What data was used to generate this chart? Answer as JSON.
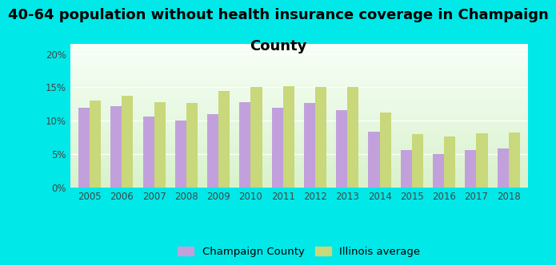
{
  "title_line1": "40-64 population without health insurance coverage in Champaign",
  "title_line2": "County",
  "years": [
    2005,
    2006,
    2007,
    2008,
    2009,
    2010,
    2011,
    2012,
    2013,
    2014,
    2015,
    2016,
    2017,
    2018
  ],
  "champaign": [
    12.0,
    12.2,
    10.6,
    10.0,
    11.0,
    12.8,
    12.0,
    12.7,
    11.6,
    8.4,
    5.6,
    5.0,
    5.6,
    5.9
  ],
  "illinois": [
    13.0,
    13.7,
    12.8,
    12.7,
    14.4,
    15.1,
    15.2,
    15.1,
    15.1,
    11.2,
    8.0,
    7.7,
    8.1,
    8.2
  ],
  "champaign_color": "#c2a0dc",
  "illinois_color": "#c8d87a",
  "background_outer": "#00e8e8",
  "yticks": [
    0,
    5,
    10,
    15,
    20
  ],
  "ylim": [
    0,
    21.5
  ],
  "bar_width": 0.35,
  "title_fontsize": 13,
  "tick_fontsize": 8.5,
  "legend_fontsize": 9.5
}
